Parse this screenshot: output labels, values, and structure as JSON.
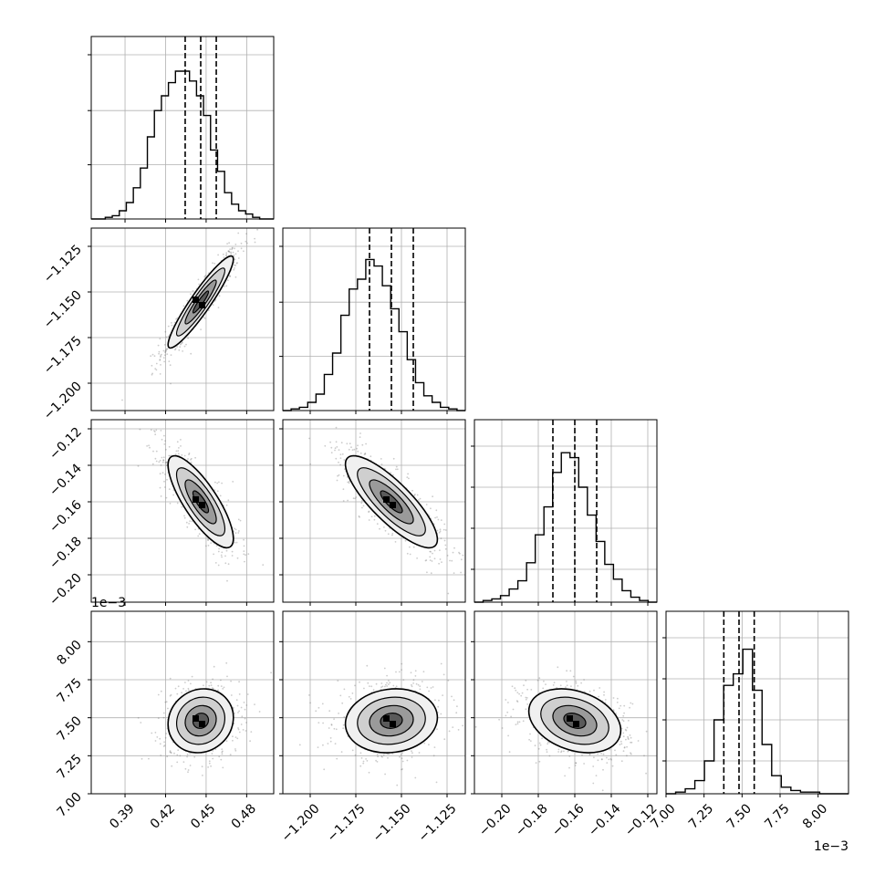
{
  "chart_data": {
    "type": "corner",
    "parameters": [
      {
        "range": [
          0.365,
          0.5
        ],
        "ticks": [
          0.39,
          0.42,
          0.45,
          0.48
        ],
        "tick_labels": [
          "0.39",
          "0.42",
          "0.45",
          "0.48"
        ],
        "quantiles": [
          0.4345,
          0.446,
          0.4575
        ],
        "histogram": [
          0,
          0,
          0.01,
          0.02,
          0.05,
          0.1,
          0.19,
          0.31,
          0.5,
          0.66,
          0.75,
          0.83,
          0.9,
          0.9,
          0.84,
          0.75,
          0.63,
          0.42,
          0.29,
          0.16,
          0.09,
          0.05,
          0.03,
          0.01,
          0,
          0
        ],
        "hist_yticks": [
          0.33,
          0.66,
          1.0
        ]
      },
      {
        "range": [
          -1.215,
          -1.115
        ],
        "ticks": [
          -1.2,
          -1.175,
          -1.15,
          -1.125
        ],
        "tick_labels": [
          "−1.200",
          "−1.175",
          "−1.150",
          "−1.125"
        ],
        "quantiles": [
          -1.1675,
          -1.1555,
          -1.1435
        ],
        "histogram": [
          0,
          0.01,
          0.02,
          0.05,
          0.1,
          0.22,
          0.35,
          0.58,
          0.74,
          0.8,
          0.92,
          0.88,
          0.76,
          0.62,
          0.48,
          0.31,
          0.17,
          0.09,
          0.05,
          0.02,
          0.01,
          0
        ],
        "hist_yticks": [
          0.33,
          0.66,
          1.0
        ]
      },
      {
        "range": [
          -0.215,
          -0.115
        ],
        "ticks": [
          -0.2,
          -0.18,
          -0.16,
          -0.14,
          -0.12
        ],
        "tick_labels": [
          "−0.20",
          "−0.18",
          "−0.16",
          "−0.14",
          "−0.12"
        ],
        "quantiles": [
          -0.172,
          -0.16,
          -0.148
        ],
        "histogram": [
          0,
          0.01,
          0.02,
          0.04,
          0.08,
          0.13,
          0.24,
          0.41,
          0.58,
          0.79,
          0.91,
          0.88,
          0.7,
          0.53,
          0.37,
          0.23,
          0.14,
          0.07,
          0.03,
          0.01,
          0
        ],
        "hist_yticks": [
          0.2,
          0.45,
          0.7,
          0.95
        ]
      },
      {
        "range": [
          7.0,
          8.2
        ],
        "ticks": [
          7.0,
          7.25,
          7.5,
          7.75,
          8.0
        ],
        "tick_labels": [
          "7.00",
          "7.25",
          "7.50",
          "7.75",
          "8.00"
        ],
        "quantiles": [
          7.38,
          7.48,
          7.58
        ],
        "histogram": [
          0,
          0.01,
          0.03,
          0.08,
          0.2,
          0.45,
          0.66,
          0.73,
          0.88,
          0.63,
          0.3,
          0.11,
          0.04,
          0.02,
          0.01,
          0.01,
          0,
          0,
          0
        ],
        "hist_yticks": [
          0.2,
          0.45,
          0.7,
          0.95
        ],
        "offset_label": "1e−3"
      }
    ],
    "joint": [
      {
        "row": 1,
        "col": 0,
        "mean": [
          0.446,
          -1.1555
        ],
        "sd": [
          0.0115,
          0.012
        ],
        "rho": 0.93
      },
      {
        "row": 2,
        "col": 0,
        "mean": [
          0.446,
          -0.16
        ],
        "sd": [
          0.0115,
          0.012
        ],
        "rho": -0.8
      },
      {
        "row": 2,
        "col": 1,
        "mean": [
          -1.1555,
          -0.16
        ],
        "sd": [
          0.012,
          0.012
        ],
        "rho": -0.82
      },
      {
        "row": 3,
        "col": 0,
        "mean": [
          0.446,
          7.48
        ],
        "sd": [
          0.0115,
          0.1
        ],
        "rho": 0.1
      },
      {
        "row": 3,
        "col": 1,
        "mean": [
          -1.1555,
          7.48
        ],
        "sd": [
          0.012,
          0.1
        ],
        "rho": 0.1
      },
      {
        "row": 3,
        "col": 2,
        "mean": [
          -0.16,
          7.48
        ],
        "sd": [
          0.012,
          0.1
        ],
        "rho": -0.3
      }
    ],
    "grid": true,
    "quantile_line_style": "dashed"
  }
}
